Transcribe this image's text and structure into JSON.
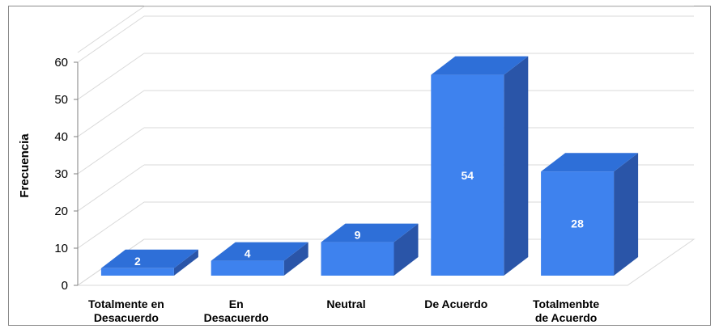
{
  "chart_data": {
    "type": "bar",
    "style": "3d",
    "categories": [
      [
        "Totalmente en",
        "Desacuerdo"
      ],
      [
        "En",
        "Desacuerdo"
      ],
      [
        "Neutral"
      ],
      [
        "De Acuerdo"
      ],
      [
        "Totalmenbte",
        "de Acuerdo"
      ]
    ],
    "values": [
      2,
      4,
      9,
      54,
      28
    ],
    "title": "",
    "xlabel": "",
    "ylabel": "Frecuencia",
    "ylim": [
      0,
      60
    ],
    "yticks": [
      0,
      10,
      20,
      30,
      40,
      50,
      60
    ],
    "grid": true,
    "colors": {
      "front": "#3e82ee",
      "top": "#2e6fd8",
      "side": "#2a55a8",
      "grid": "#d9d9d9",
      "axis": "#7f7f7f"
    }
  }
}
